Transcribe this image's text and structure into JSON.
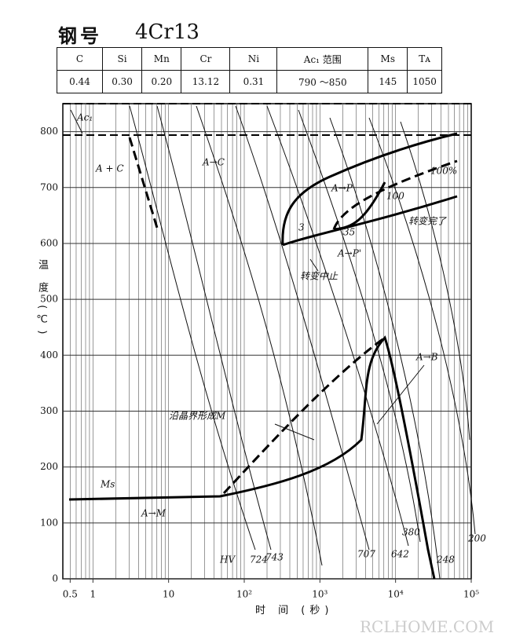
{
  "header": {
    "label": "钢号",
    "steel": "4Cr13"
  },
  "table": {
    "header": [
      "C",
      "Si",
      "Mn",
      "Cr",
      "Ni",
      "Ac₁ 范围",
      "Ms",
      "Tᴀ"
    ],
    "rows": [
      [
        "0.44",
        "0.30",
        "0.20",
        "13.12",
        "0.31",
        "790 ～850",
        "145",
        "1050"
      ]
    ]
  },
  "chart_data": {
    "type": "line",
    "xlabel": "时 间 (秒)",
    "ylabel": "温 度 (℃)",
    "log_x": true,
    "grid": true,
    "xlim": [
      0.4,
      100000
    ],
    "ylim": [
      0,
      850
    ],
    "xticks": [
      0.5,
      1,
      10,
      {
        "value": 100,
        "label": "10²"
      },
      {
        "value": 1000,
        "label": "10³"
      },
      {
        "value": 10000,
        "label": "10⁴"
      },
      {
        "value": 100000,
        "label": "10⁵"
      }
    ],
    "yticks": [
      0,
      100,
      200,
      300,
      400,
      500,
      600,
      700,
      800
    ],
    "annotations": [
      "Ac₁",
      "A + C",
      "A→C",
      "A→P",
      "100%",
      "100",
      "转变完了",
      "3",
      "35",
      "A→P'",
      "转变中止",
      "A→B",
      "沿晶界形成M",
      "Ms",
      "A→M",
      "HV",
      "724",
      "743",
      "707",
      "642",
      "380",
      "248",
      "200"
    ]
  },
  "watermark": "RCLHOME.COM"
}
